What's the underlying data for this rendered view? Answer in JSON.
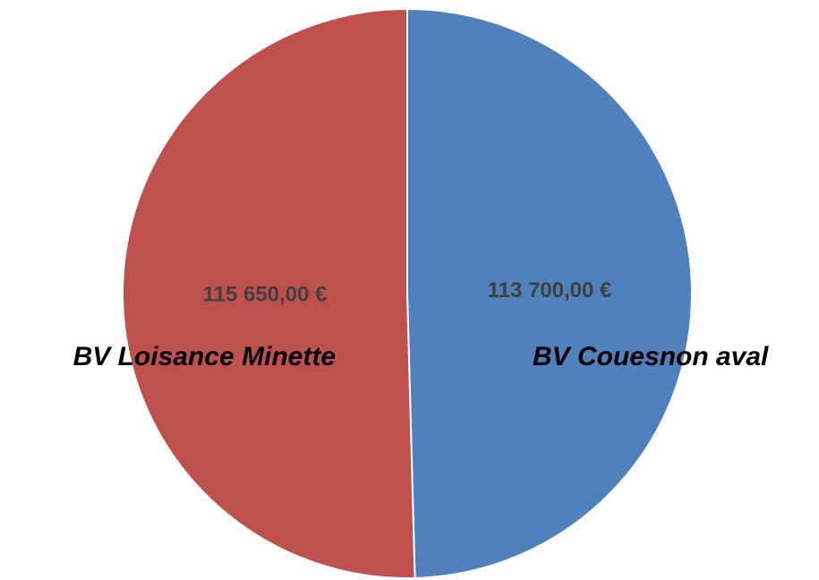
{
  "chart_data": {
    "type": "pie",
    "categories": [
      "BV Couesnon aval",
      "BV Loisance Minette"
    ],
    "values": [
      113700,
      115650
    ],
    "value_labels": [
      "113 700,00 €",
      "115 650,00 €"
    ],
    "colors": [
      "#4f81bd",
      "#c0504d"
    ]
  }
}
